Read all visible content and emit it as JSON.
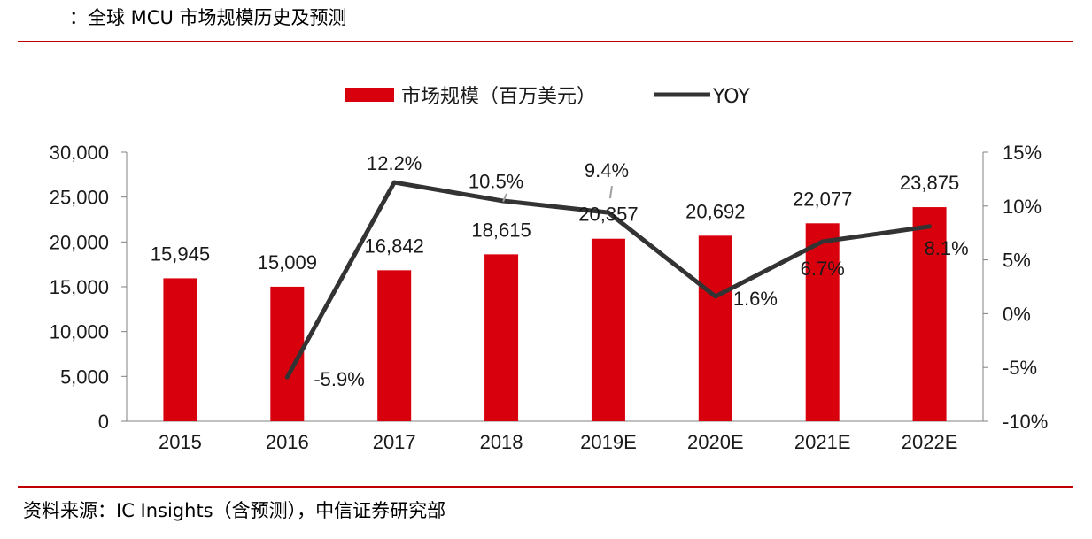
{
  "header": {
    "title": "：全球 MCU 市场规模历史及预测"
  },
  "footer": {
    "source": "资料来源：IC Insights（含预测），中信证券研究部"
  },
  "colors": {
    "bar": "#d9000d",
    "line": "#333333",
    "rule": "#c00000"
  },
  "chart_data": {
    "type": "bar",
    "title": "",
    "categories": [
      "2015",
      "2016",
      "2017",
      "2018",
      "2019E",
      "2020E",
      "2021E",
      "2022E"
    ],
    "series": [
      {
        "name": "市场规模（百万美元）",
        "type": "bar",
        "axis": "left",
        "values": [
          15945,
          15009,
          16842,
          18615,
          20357,
          20692,
          22077,
          23875
        ],
        "labels": [
          "15,945",
          "15,009",
          "16,842",
          "18,615",
          "20,357",
          "20,692",
          "22,077",
          "23,875"
        ]
      },
      {
        "name": "YOY",
        "type": "line",
        "axis": "right",
        "values": [
          null,
          -5.9,
          12.2,
          10.5,
          9.4,
          1.6,
          6.7,
          8.1
        ],
        "labels": [
          "",
          "-5.9%",
          "12.2%",
          "10.5%",
          "9.4%",
          "1.6%",
          "6.7%",
          "8.1%"
        ]
      }
    ],
    "y_left": {
      "ylim": [
        0,
        30000
      ],
      "ticks": [
        0,
        5000,
        10000,
        15000,
        20000,
        25000,
        30000
      ],
      "tick_labels": [
        "0",
        "5,000",
        "10,000",
        "15,000",
        "20,000",
        "25,000",
        "30,000"
      ]
    },
    "y_right": {
      "ylim": [
        -10,
        15
      ],
      "ticks": [
        -10,
        -5,
        0,
        5,
        10,
        15
      ],
      "tick_labels": [
        "-10%",
        "-5%",
        "0%",
        "5%",
        "10%",
        "15%"
      ]
    },
    "legend": "top",
    "grid": false
  }
}
